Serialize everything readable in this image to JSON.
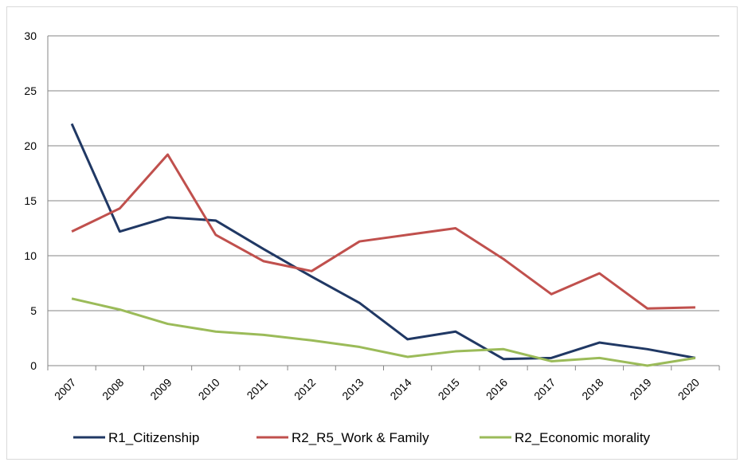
{
  "chart_data": {
    "type": "line",
    "categories": [
      "2007",
      "2008",
      "2009",
      "2010",
      "2011",
      "2012",
      "2013",
      "2014",
      "2015",
      "2016",
      "2017",
      "2018",
      "2019",
      "2020"
    ],
    "series": [
      {
        "name": "R1_Citizenship",
        "color": "#203864",
        "values": [
          22,
          12.2,
          13.5,
          13.2,
          10.6,
          8.1,
          5.7,
          2.4,
          3.1,
          0.6,
          0.7,
          2.1,
          1.5,
          0.7
        ]
      },
      {
        "name": "R2_R5_Work & Family",
        "color": "#c0504d",
        "values": [
          12.2,
          14.3,
          19.2,
          11.9,
          9.5,
          8.6,
          11.3,
          11.9,
          12.5,
          9.7,
          6.5,
          8.4,
          5.2,
          5.3
        ]
      },
      {
        "name": "R2_Economic morality",
        "color": "#9bbb59",
        "values": [
          6.1,
          5.1,
          3.8,
          3.1,
          2.8,
          2.3,
          1.7,
          0.8,
          1.3,
          1.5,
          0.4,
          0.7,
          0,
          0.7
        ]
      }
    ],
    "ylim": [
      0,
      30
    ],
    "yticks": [
      0,
      5,
      10,
      15,
      20,
      25,
      30
    ],
    "grid": true,
    "legend": "bottom"
  }
}
